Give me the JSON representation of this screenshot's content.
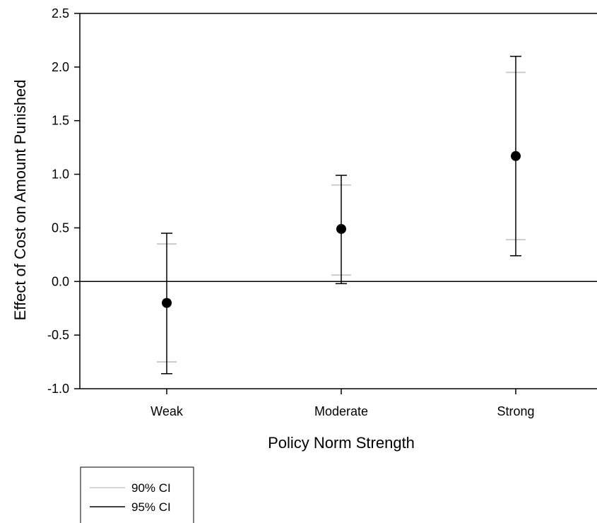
{
  "chart_data": {
    "type": "scatter",
    "xlabel": "Policy Norm Strength",
    "ylabel": "Effect of Cost on Amount Punished",
    "categories": [
      "Weak",
      "Moderate",
      "Strong"
    ],
    "ylim": [
      -1.0,
      2.5
    ],
    "yticks": [
      "-1.0",
      "-0.5",
      "0.0",
      "0.5",
      "1.0",
      "1.5",
      "2.0",
      "2.5"
    ],
    "reference_line_y": 0.0,
    "estimates": [
      -0.2,
      0.49,
      1.17
    ],
    "ci90": [
      [
        -0.75,
        0.35
      ],
      [
        0.06,
        0.9
      ],
      [
        0.39,
        1.95
      ]
    ],
    "ci95": [
      [
        -0.86,
        0.45
      ],
      [
        -0.02,
        0.99
      ],
      [
        0.24,
        2.1
      ]
    ],
    "legend": {
      "placement": "bottom-left",
      "items": [
        {
          "label": "90% CI",
          "color": "#c8c8c8"
        },
        {
          "label": "95% CI",
          "color": "#000000"
        }
      ]
    },
    "grid": false,
    "point_color": "#000000"
  }
}
